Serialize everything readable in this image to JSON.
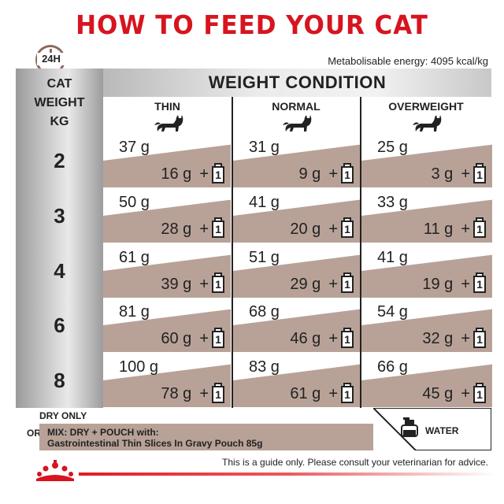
{
  "title": "HOW TO FEED YOUR CAT",
  "clock_label": "24H",
  "energy": "Metabolisable energy: 4095 kcal/kg",
  "table": {
    "corner_header": [
      "CAT",
      "WEIGHT",
      "KG"
    ],
    "group_header": "WEIGHT CONDITION",
    "columns": [
      "THIN",
      "NORMAL",
      "OVERWEIGHT"
    ],
    "rows": [
      {
        "weight": "2",
        "cells": [
          {
            "dry": "37 g",
            "mix": "16 g"
          },
          {
            "dry": "31 g",
            "mix": "9 g"
          },
          {
            "dry": "25 g",
            "mix": "3 g"
          }
        ]
      },
      {
        "weight": "3",
        "cells": [
          {
            "dry": "50 g",
            "mix": "28 g"
          },
          {
            "dry": "41 g",
            "mix": "20 g"
          },
          {
            "dry": "33 g",
            "mix": "11 g"
          }
        ]
      },
      {
        "weight": "4",
        "cells": [
          {
            "dry": "61 g",
            "mix": "39 g"
          },
          {
            "dry": "51 g",
            "mix": "29 g"
          },
          {
            "dry": "41 g",
            "mix": "19 g"
          }
        ]
      },
      {
        "weight": "6",
        "cells": [
          {
            "dry": "81 g",
            "mix": "60 g"
          },
          {
            "dry": "68 g",
            "mix": "46 g"
          },
          {
            "dry": "54 g",
            "mix": "32 g"
          }
        ]
      },
      {
        "weight": "8",
        "cells": [
          {
            "dry": "100 g",
            "mix": "78 g"
          },
          {
            "dry": "83 g",
            "mix": "61 g"
          },
          {
            "dry": "66 g",
            "mix": "45 g"
          }
        ]
      }
    ],
    "plus": "+",
    "pouch_count": "1"
  },
  "legend": {
    "dry_only": "DRY ONLY",
    "or": "OR",
    "mix_line1": "MIX: DRY + POUCH with:",
    "mix_line2": "Gastrointestinal Thin Slices In Gravy Pouch 85g",
    "water": "WATER"
  },
  "disclaimer": "This is a guide only. Please consult your veterinarian for advice.",
  "colors": {
    "brand_red": "#d7141f",
    "band": "#b8a298"
  }
}
